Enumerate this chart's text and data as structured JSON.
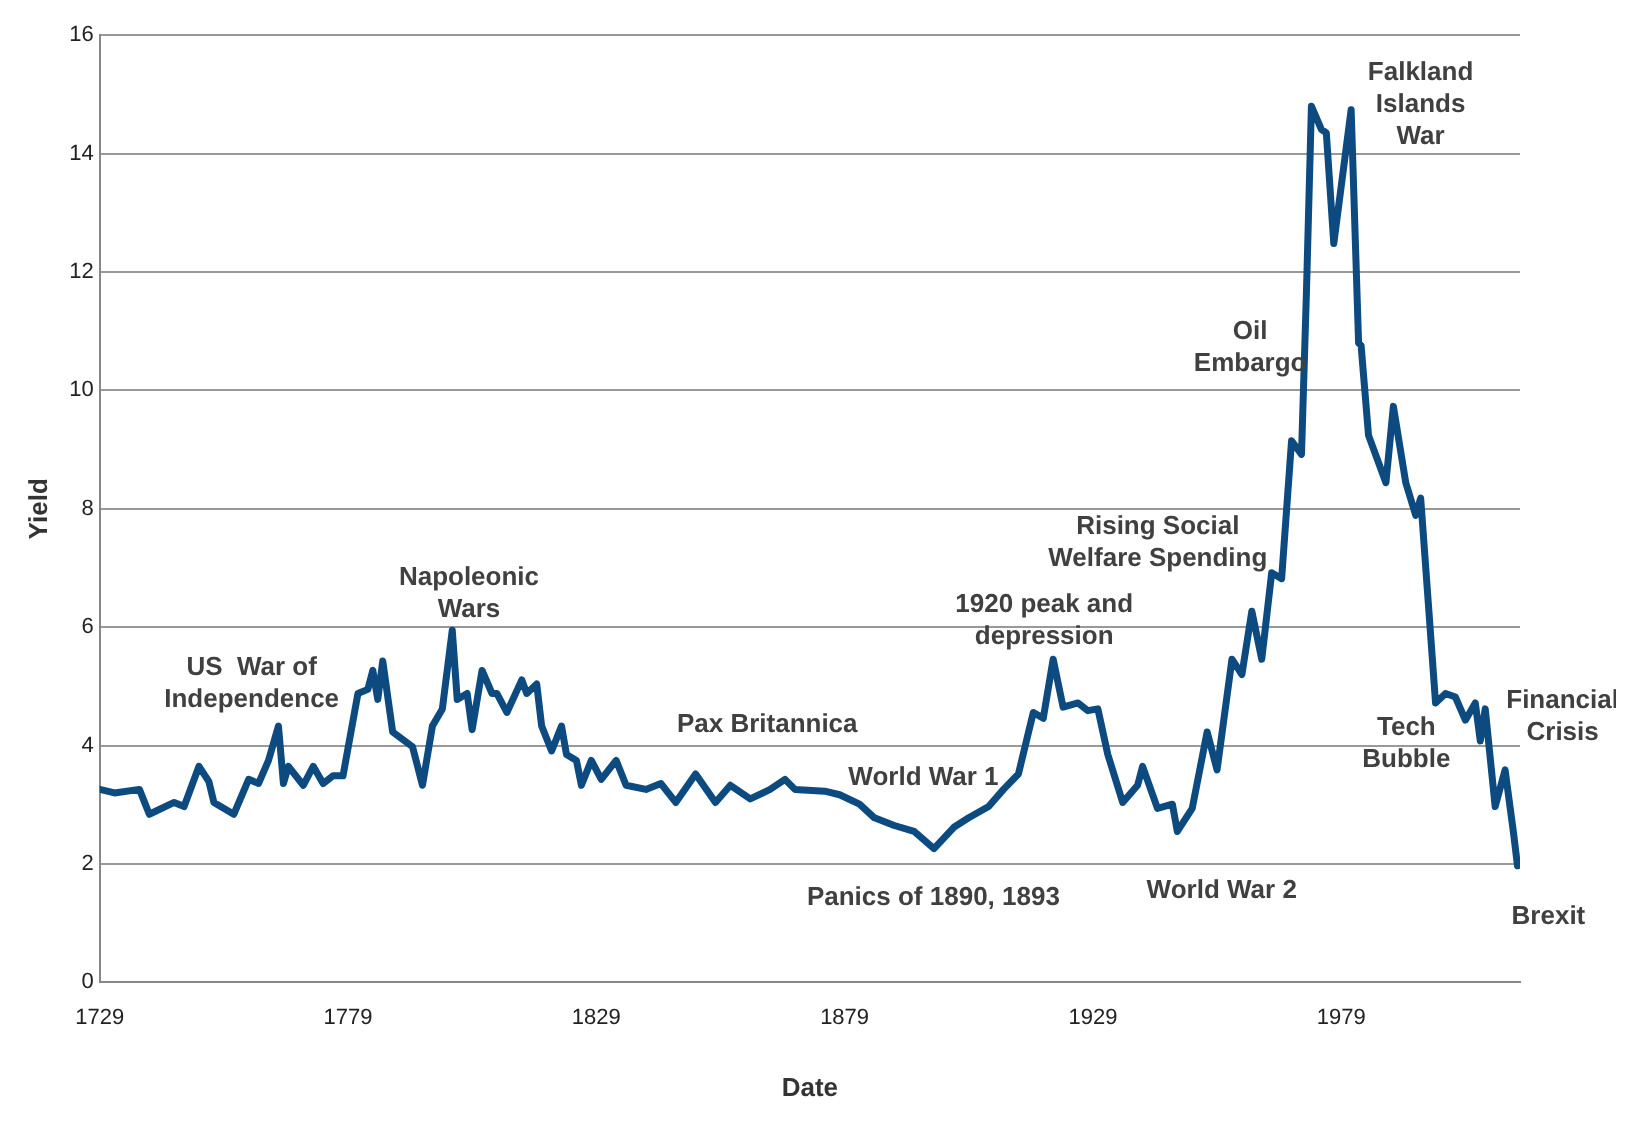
{
  "chart_data": {
    "type": "line",
    "xlabel": "Date",
    "ylabel": "Yield",
    "xlim": [
      1729,
      2015
    ],
    "xticks": [
      1729,
      1779,
      1829,
      1879,
      1929,
      1979
    ],
    "ylim": [
      0,
      16
    ],
    "yticks": [
      0,
      2,
      4,
      6,
      8,
      10,
      12,
      14,
      16
    ],
    "grid": "y",
    "legend": false,
    "marker": "none",
    "line_style": "solid",
    "series": [
      {
        "color": "#0d4a80",
        "x": [
          1729,
          1732,
          1737,
          1739,
          1744,
          1746,
          1749,
          1751,
          1752,
          1756,
          1759,
          1761,
          1763,
          1765,
          1766,
          1767,
          1770,
          1772,
          1774,
          1776,
          1778,
          1781,
          1783,
          1784,
          1785,
          1786,
          1788,
          1792,
          1794,
          1796,
          1798,
          1800,
          1801,
          1803,
          1804,
          1806,
          1808,
          1809,
          1811,
          1814,
          1815,
          1817,
          1818,
          1820,
          1822,
          1823,
          1825,
          1826,
          1828,
          1830,
          1833,
          1835,
          1839,
          1842,
          1845,
          1849,
          1853,
          1856,
          1860,
          1864,
          1867,
          1869,
          1875,
          1878,
          1882,
          1885,
          1889,
          1893,
          1897,
          1901,
          1904,
          1908,
          1911,
          1914,
          1917,
          1919,
          1921,
          1923,
          1926,
          1928,
          1930,
          1932,
          1935,
          1938,
          1939,
          1942,
          1945,
          1946,
          1949,
          1952,
          1954,
          1957,
          1959,
          1961,
          1963,
          1965,
          1967,
          1969,
          1971,
          1972,
          1973,
          1975,
          1976,
          1977.5,
          1981,
          1982.5,
          1983,
          1984.5,
          1988,
          1989.5,
          1992,
          1994,
          1995,
          1998,
          2000,
          2002,
          2004,
          2006,
          2007,
          2008,
          2010,
          2012,
          2013.7,
          2014.5
        ],
        "values": [
          3.26,
          3.2,
          3.26,
          2.84,
          3.04,
          2.97,
          3.65,
          3.39,
          3.04,
          2.84,
          3.43,
          3.36,
          3.75,
          4.33,
          3.36,
          3.65,
          3.33,
          3.65,
          3.36,
          3.49,
          3.49,
          4.88,
          4.95,
          5.27,
          4.78,
          5.43,
          4.23,
          3.98,
          3.33,
          4.33,
          4.62,
          5.95,
          4.78,
          4.88,
          4.27,
          5.27,
          4.88,
          4.88,
          4.56,
          5.11,
          4.88,
          5.04,
          4.33,
          3.91,
          4.33,
          3.85,
          3.75,
          3.33,
          3.75,
          3.43,
          3.75,
          3.33,
          3.26,
          3.36,
          3.04,
          3.52,
          3.04,
          3.33,
          3.1,
          3.26,
          3.43,
          3.26,
          3.23,
          3.17,
          3.01,
          2.78,
          2.65,
          2.55,
          2.26,
          2.62,
          2.78,
          2.97,
          3.26,
          3.52,
          4.56,
          4.46,
          5.46,
          4.65,
          4.72,
          4.59,
          4.62,
          3.85,
          3.04,
          3.33,
          3.65,
          2.94,
          3.01,
          2.55,
          2.94,
          4.23,
          3.59,
          5.46,
          5.2,
          6.27,
          5.46,
          6.92,
          6.82,
          9.15,
          8.92,
          11.67,
          14.8,
          14.41,
          14.35,
          12.48,
          14.74,
          10.8,
          10.76,
          9.24,
          8.44,
          9.73,
          8.44,
          7.89,
          8.18,
          4.72,
          4.88,
          4.82,
          4.43,
          4.72,
          4.08,
          4.62,
          2.97,
          3.59,
          2.52,
          1.97
        ]
      }
    ],
    "annotations": [
      "US  War of\nIndependence",
      "Napoleonic\nWars",
      "Pax Britannica",
      "World War 1",
      "Panics of 1890, 1893",
      "1920 peak and\ndepression",
      "World War 2",
      "Rising Social\nWelfare Spending",
      "Oil\nEmbargo",
      "Falkland\nIslands\nWar",
      "Tech\nBubble",
      "Financial\nCrisis",
      "Brexit"
    ]
  }
}
